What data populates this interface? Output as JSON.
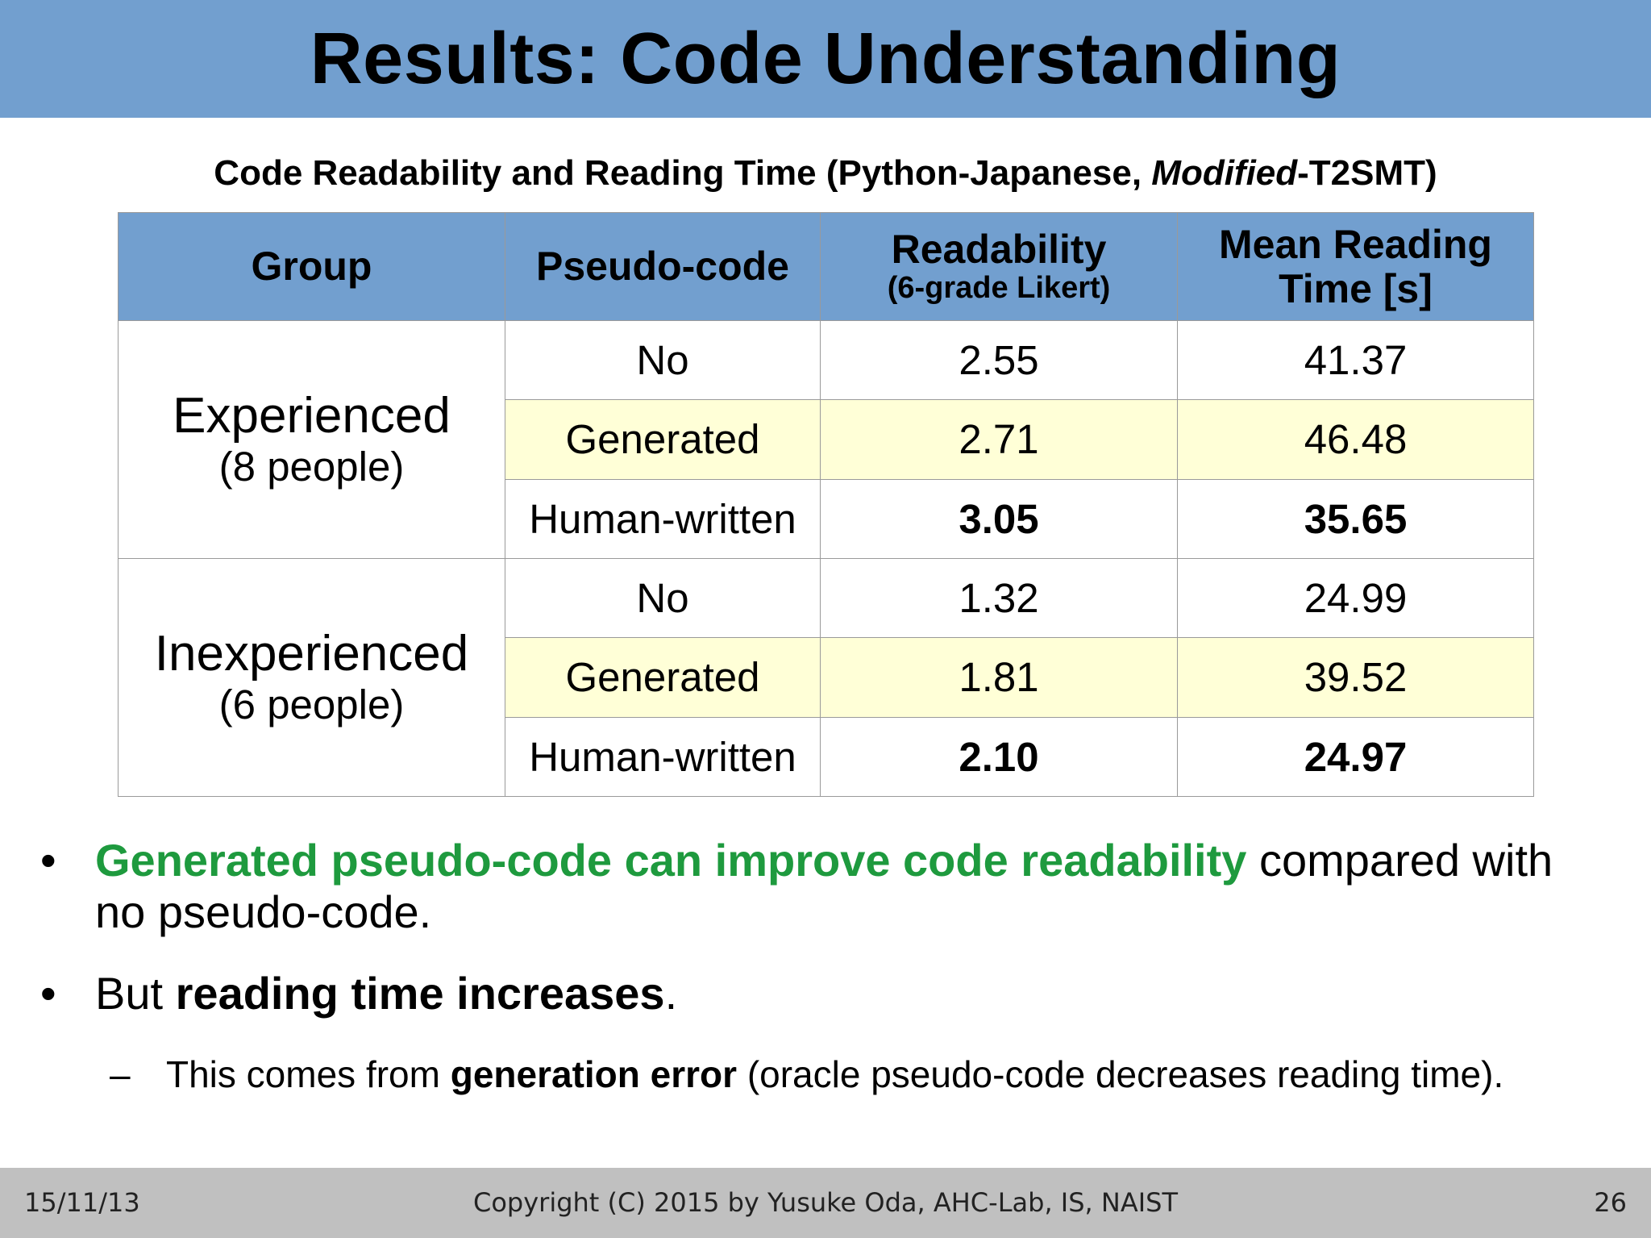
{
  "slide": {
    "title": "Results: Code Understanding",
    "caption": {
      "prefix": "Code Readability and Reading Time (Python-Japanese, ",
      "italic": "Modified",
      "suffix": "-T2SMT)"
    }
  },
  "table": {
    "headers": {
      "group": "Group",
      "pseudo": "Pseudo-code",
      "readability": "Readability",
      "readability_sub": "(6-grade Likert)",
      "time_line1": "Mean Reading",
      "time_line2": "Time [s]"
    },
    "groups": [
      {
        "name": "Experienced",
        "count": "(8 people)",
        "rows": [
          {
            "pseudo": "No",
            "readability": "2.55",
            "time": "41.37"
          },
          {
            "pseudo": "Generated",
            "readability": "2.71",
            "time": "46.48"
          },
          {
            "pseudo": "Human-written",
            "readability": "3.05",
            "time": "35.65"
          }
        ]
      },
      {
        "name": "Inexperienced",
        "count": "(6 people)",
        "rows": [
          {
            "pseudo": "No",
            "readability": "1.32",
            "time": "24.99"
          },
          {
            "pseudo": "Generated",
            "readability": "1.81",
            "time": "39.52"
          },
          {
            "pseudo": "Human-written",
            "readability": "2.10",
            "time": "24.97"
          }
        ]
      }
    ]
  },
  "bullets": {
    "b1_highlight": "Generated pseudo-code can improve code readability",
    "b1_rest_line1": " compared with",
    "b1_rest_line2": "no pseudo-code.",
    "b2_prefix": "But ",
    "b2_bold": "reading time increases",
    "b2_suffix": ".",
    "sub_prefix": "This comes from ",
    "sub_bold": "generation error",
    "sub_suffix": " (oracle pseudo-code decreases reading time)."
  },
  "footer": {
    "date": "15/11/13",
    "copyright": "Copyright (C) 2015 by Yusuke Oda, AHC-Lab, IS, NAIST",
    "page": "26"
  },
  "colors": {
    "title_bar": "#729fcf",
    "header_cells": "#729fcf",
    "generated_rows": "#ffffd7",
    "highlight_text": "#1e9a3e",
    "footer": "#c0c0c0"
  }
}
